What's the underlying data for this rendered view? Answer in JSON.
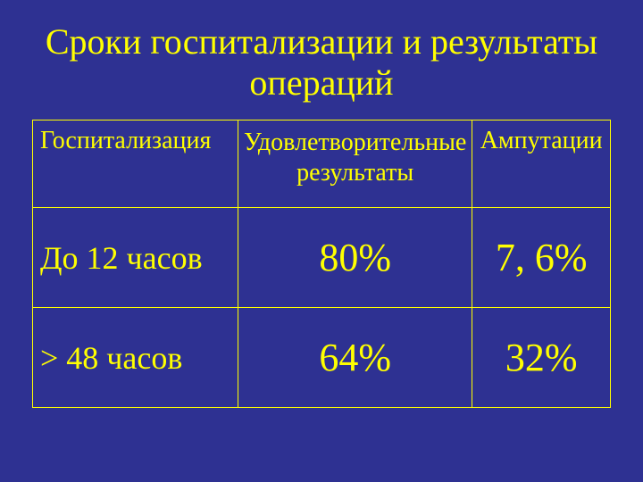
{
  "title": "Сроки госпитализации и результаты операций",
  "table": {
    "type": "table",
    "background_color": "#2e3192",
    "text_color": "#ffff00",
    "border_color": "#ffff00",
    "columns": [
      {
        "label": "Госпитализация",
        "align": "left",
        "width_pct": 36
      },
      {
        "label": "Удовлетворительные результаты",
        "align": "center",
        "width_pct": 40
      },
      {
        "label": "Ампутации",
        "align": "center",
        "width_pct": 24
      }
    ],
    "rows": [
      {
        "label": "До 12 часов",
        "values": [
          "80%",
          "7, 6%"
        ]
      },
      {
        "label": "> 48 часов",
        "values": [
          "64%",
          "32%"
        ]
      }
    ],
    "header_fontsize": 28,
    "rowlabel_fontsize": 36,
    "value_fontsize": 44,
    "title_fontsize": 40
  }
}
